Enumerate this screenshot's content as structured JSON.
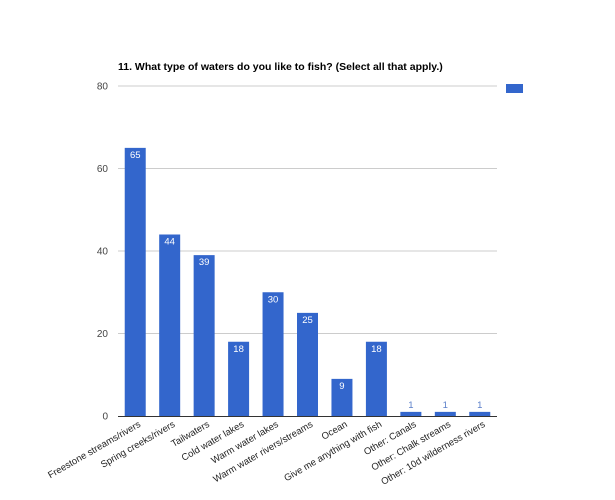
{
  "chart_data": {
    "type": "bar",
    "title": "11. What type of waters do you like to fish? (Select all that apply.)",
    "xlabel": "",
    "ylabel": "",
    "categories": [
      "Freestone streams/rivers",
      "Spring creeks/rivers",
      "Tailwaters",
      "Cold water lakes",
      "Warm water lakes",
      "Warm water rivers/streams",
      "Ocean",
      "Give me anything with fish",
      "Other: Canals",
      "Other: Chalk streams",
      "Other: 10d wilderness rivers"
    ],
    "series": [
      {
        "values": [
          65,
          44,
          39,
          18,
          30,
          25,
          9,
          18,
          1,
          1,
          1
        ]
      }
    ],
    "ylim": [
      0,
      80
    ],
    "yticks": [
      0,
      20,
      40,
      60,
      80
    ],
    "grid": true,
    "legend": "top-right",
    "colors": {
      "bar": "#3366cc",
      "grid": "#cccccc",
      "axis": "#333333"
    }
  }
}
